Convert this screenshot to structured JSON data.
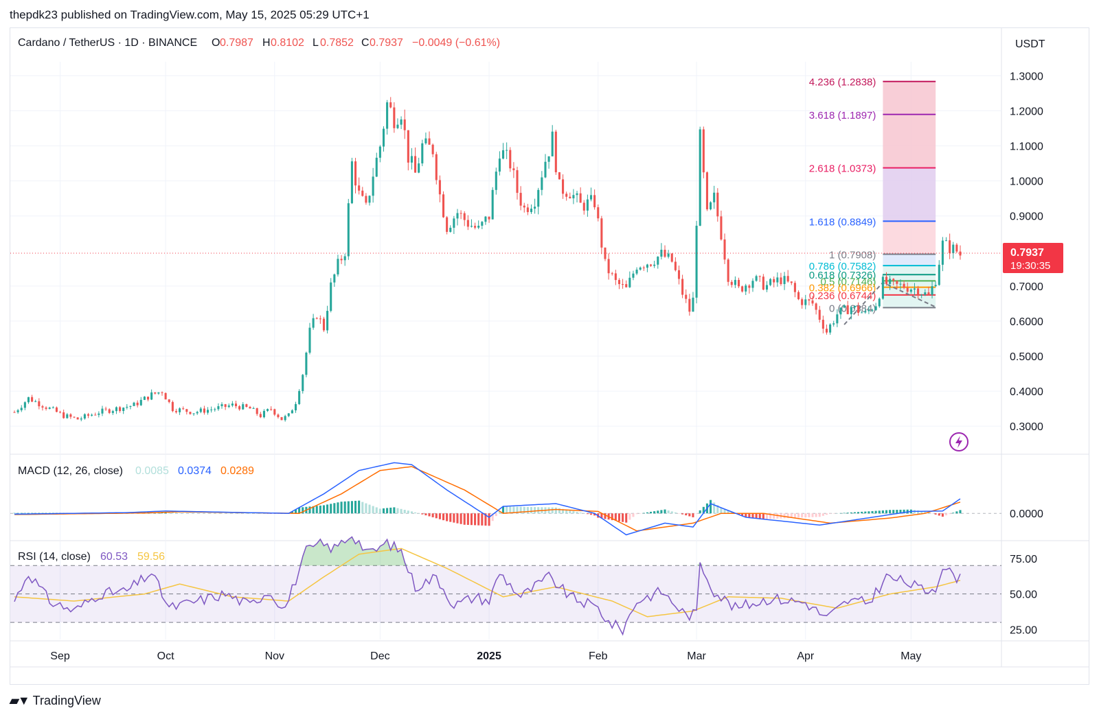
{
  "header": {
    "publisher": "thepdk23 published on TradingView.com, May 15, 2025 05:29 UTC+1"
  },
  "footer": {
    "brand": "TradingView"
  },
  "colors": {
    "up": "#26a69a",
    "down": "#ef5350",
    "macd": "#2962ff",
    "signal": "#ff6d00",
    "rsi": "#7e57c2",
    "rsi_ma": "#f5c542",
    "fib_zone_top": "#f7c6d0",
    "fib_zone_purple": "#e1cdef"
  },
  "chart_data": [
    {
      "type": "candlestick",
      "title": "Cardano / TetherUS · 1D · BINANCE",
      "ohlc_legend": {
        "o_label": "O",
        "o": "0.7987",
        "h_label": "H",
        "h": "0.8102",
        "l_label": "L",
        "l": "0.7852",
        "c_label": "C",
        "c": "0.7937",
        "change": "−0.0049 (−0.61%)"
      },
      "currency": "USDT",
      "ylim": [
        0.22,
        1.34
      ],
      "y_ticks": [
        "1.3000",
        "1.2000",
        "1.1000",
        "1.0000",
        "0.9000",
        "0.7000",
        "0.6000",
        "0.5000",
        "0.4000",
        "0.3000"
      ],
      "y_tick_values": [
        1.3,
        1.2,
        1.1,
        1.0,
        0.9,
        0.7,
        0.6,
        0.5,
        0.4,
        0.3
      ],
      "x_ticks": [
        "Sep",
        "Oct",
        "Nov",
        "Dec",
        "2025",
        "Feb",
        "Mar",
        "Apr",
        "May"
      ],
      "x_tick_dates": [
        "2024-09-01",
        "2024-10-01",
        "2024-11-01",
        "2024-12-01",
        "2025-01-01",
        "2025-02-01",
        "2025-03-01",
        "2025-04-01",
        "2025-05-01"
      ],
      "date_range": [
        "2024-08-19",
        "2025-05-15"
      ],
      "price_waypoints": [
        [
          "2024-08-19",
          0.34
        ],
        [
          "2024-08-23",
          0.38
        ],
        [
          "2024-08-27",
          0.36
        ],
        [
          "2024-09-02",
          0.33
        ],
        [
          "2024-09-06",
          0.32
        ],
        [
          "2024-09-12",
          0.34
        ],
        [
          "2024-09-17",
          0.35
        ],
        [
          "2024-09-22",
          0.36
        ],
        [
          "2024-09-27",
          0.39
        ],
        [
          "2024-09-30",
          0.4
        ],
        [
          "2024-10-03",
          0.35
        ],
        [
          "2024-10-09",
          0.34
        ],
        [
          "2024-10-15",
          0.35
        ],
        [
          "2024-10-20",
          0.36
        ],
        [
          "2024-10-25",
          0.35
        ],
        [
          "2024-10-28",
          0.33
        ],
        [
          "2024-10-31",
          0.35
        ],
        [
          "2024-11-03",
          0.32
        ],
        [
          "2024-11-05",
          0.33
        ],
        [
          "2024-11-07",
          0.37
        ],
        [
          "2024-11-09",
          0.45
        ],
        [
          "2024-11-11",
          0.57
        ],
        [
          "2024-11-13",
          0.62
        ],
        [
          "2024-11-15",
          0.58
        ],
        [
          "2024-11-17",
          0.7
        ],
        [
          "2024-11-19",
          0.76
        ],
        [
          "2024-11-21",
          0.8
        ],
        [
          "2024-11-23",
          1.05
        ],
        [
          "2024-11-25",
          0.96
        ],
        [
          "2024-11-27",
          0.92
        ],
        [
          "2024-11-29",
          1.02
        ],
        [
          "2024-12-01",
          1.1
        ],
        [
          "2024-12-03",
          1.22
        ],
        [
          "2024-12-05",
          1.18
        ],
        [
          "2024-12-07",
          1.2
        ],
        [
          "2024-12-09",
          1.07
        ],
        [
          "2024-12-11",
          1.02
        ],
        [
          "2024-12-13",
          1.1
        ],
        [
          "2024-12-16",
          1.09
        ],
        [
          "2024-12-18",
          0.96
        ],
        [
          "2024-12-20",
          0.87
        ],
        [
          "2024-12-23",
          0.91
        ],
        [
          "2024-12-26",
          0.88
        ],
        [
          "2024-12-29",
          0.86
        ],
        [
          "2025-01-01",
          0.9
        ],
        [
          "2025-01-04",
          1.09
        ],
        [
          "2025-01-07",
          1.05
        ],
        [
          "2025-01-09",
          0.97
        ],
        [
          "2025-01-11",
          0.92
        ],
        [
          "2025-01-14",
          0.95
        ],
        [
          "2025-01-17",
          1.06
        ],
        [
          "2025-01-19",
          1.12
        ],
        [
          "2025-01-21",
          0.98
        ],
        [
          "2025-01-24",
          0.97
        ],
        [
          "2025-01-27",
          0.93
        ],
        [
          "2025-01-31",
          0.94
        ],
        [
          "2025-02-02",
          0.82
        ],
        [
          "2025-02-03",
          0.76
        ],
        [
          "2025-02-06",
          0.71
        ],
        [
          "2025-02-09",
          0.69
        ],
        [
          "2025-02-12",
          0.76
        ],
        [
          "2025-02-16",
          0.77
        ],
        [
          "2025-02-19",
          0.79
        ],
        [
          "2025-02-22",
          0.77
        ],
        [
          "2025-02-25",
          0.68
        ],
        [
          "2025-02-27",
          0.63
        ],
        [
          "2025-02-28",
          0.66
        ],
        [
          "2025-03-02",
          1.12
        ],
        [
          "2025-03-04",
          0.9
        ],
        [
          "2025-03-06",
          0.95
        ],
        [
          "2025-03-08",
          0.85
        ],
        [
          "2025-03-10",
          0.73
        ],
        [
          "2025-03-13",
          0.69
        ],
        [
          "2025-03-17",
          0.72
        ],
        [
          "2025-03-21",
          0.7
        ],
        [
          "2025-03-25",
          0.72
        ],
        [
          "2025-03-28",
          0.7
        ],
        [
          "2025-03-30",
          0.66
        ],
        [
          "2025-04-03",
          0.65
        ],
        [
          "2025-04-07",
          0.57
        ],
        [
          "2025-04-10",
          0.62
        ],
        [
          "2025-04-14",
          0.64
        ],
        [
          "2025-04-18",
          0.62
        ],
        [
          "2025-04-21",
          0.65
        ],
        [
          "2025-04-23",
          0.71
        ],
        [
          "2025-04-26",
          0.7
        ],
        [
          "2025-04-29",
          0.7
        ],
        [
          "2025-05-03",
          0.69
        ],
        [
          "2025-05-06",
          0.67
        ],
        [
          "2025-05-08",
          0.72
        ],
        [
          "2025-05-10",
          0.82
        ],
        [
          "2025-05-12",
          0.81
        ],
        [
          "2025-05-14",
          0.8
        ],
        [
          "2025-05-15",
          0.79
        ]
      ],
      "current_price": {
        "value": 0.7937,
        "label": "0.7937",
        "countdown": "19:30:35",
        "color": "#f23645"
      },
      "fib_extension": {
        "date_range": [
          "2025-04-23",
          "2025-05-08"
        ],
        "levels": [
          {
            "ratio": 4.236,
            "price": 1.2838,
            "label": "4.236 (1.2838)",
            "color": "#c2185b"
          },
          {
            "ratio": 3.618,
            "price": 1.1897,
            "label": "3.618 (1.1897)",
            "color": "#9c27b0"
          },
          {
            "ratio": 2.618,
            "price": 1.0373,
            "label": "2.618 (1.0373)",
            "color": "#e91e63"
          },
          {
            "ratio": 1.618,
            "price": 0.8849,
            "label": "1.618 (0.8849)",
            "color": "#2962ff"
          },
          {
            "ratio": 1,
            "price": 0.7908,
            "label": "1 (0.7908)",
            "color": "#787b86"
          },
          {
            "ratio": 0.786,
            "price": 0.7582,
            "label": "0.786 (0.7582)",
            "color": "#00bcd4"
          },
          {
            "ratio": 0.618,
            "price": 0.7326,
            "label": "0.618 (0.7326)",
            "color": "#089981"
          },
          {
            "ratio": 0.5,
            "price": 0.7146,
            "label": "0.5 (0.7146)",
            "color": "#4caf50"
          },
          {
            "ratio": 0.382,
            "price": 0.6966,
            "label": "0.382 (0.6966)",
            "color": "#ff9800"
          },
          {
            "ratio": 0.236,
            "price": 0.6744,
            "label": "0.236 (0.6744)",
            "color": "#f23645"
          },
          {
            "ratio": 0,
            "price": 0.6384,
            "label": "0 (0.6384)",
            "color": "#787b86"
          }
        ]
      }
    },
    {
      "type": "line",
      "title": "MACD (12, 26, close)",
      "values_legend": [
        "0.0085",
        "0.0374",
        "0.0289"
      ],
      "y_ticks": [
        "0.0000"
      ],
      "ylim": [
        -0.07,
        0.15
      ],
      "series": [
        {
          "key": "macd",
          "waypoints": [
            [
              "2024-08-19",
              -0.002
            ],
            [
              "2024-09-20",
              0.002
            ],
            [
              "2024-10-01",
              0.006
            ],
            [
              "2024-11-05",
              0.0
            ],
            [
              "2024-11-15",
              0.05
            ],
            [
              "2024-11-25",
              0.11
            ],
            [
              "2024-12-05",
              0.13
            ],
            [
              "2024-12-10",
              0.125
            ],
            [
              "2024-12-20",
              0.06
            ],
            [
              "2025-01-01",
              -0.01
            ],
            [
              "2025-01-05",
              0.018
            ],
            [
              "2025-01-20",
              0.025
            ],
            [
              "2025-01-31",
              0.0
            ],
            [
              "2025-02-09",
              -0.055
            ],
            [
              "2025-02-20",
              -0.025
            ],
            [
              "2025-02-28",
              -0.035
            ],
            [
              "2025-03-05",
              0.025
            ],
            [
              "2025-03-15",
              -0.01
            ],
            [
              "2025-04-05",
              -0.03
            ],
            [
              "2025-04-20",
              -0.01
            ],
            [
              "2025-05-01",
              0.005
            ],
            [
              "2025-05-10",
              0.006
            ],
            [
              "2025-05-15",
              0.0374
            ]
          ]
        },
        {
          "key": "signal",
          "waypoints": [
            [
              "2024-08-19",
              -0.003
            ],
            [
              "2024-09-25",
              0.001
            ],
            [
              "2024-10-05",
              0.004
            ],
            [
              "2024-11-08",
              0.0
            ],
            [
              "2024-11-20",
              0.05
            ],
            [
              "2024-12-01",
              0.11
            ],
            [
              "2024-12-10",
              0.12
            ],
            [
              "2024-12-25",
              0.06
            ],
            [
              "2025-01-05",
              0.0
            ],
            [
              "2025-01-20",
              0.01
            ],
            [
              "2025-02-01",
              0.005
            ],
            [
              "2025-02-12",
              -0.045
            ],
            [
              "2025-02-28",
              -0.025
            ],
            [
              "2025-03-08",
              0.0
            ],
            [
              "2025-03-20",
              0.0
            ],
            [
              "2025-04-08",
              -0.025
            ],
            [
              "2025-04-25",
              -0.012
            ],
            [
              "2025-05-05",
              0.0
            ],
            [
              "2025-05-15",
              0.0289
            ]
          ]
        }
      ],
      "histogram_value": "0.0085"
    },
    {
      "type": "line",
      "title": "RSI (14, close)",
      "values_legend": [
        "60.53",
        "59.56"
      ],
      "y_ticks": [
        "75.00",
        "50.00",
        "25.00"
      ],
      "y_tick_values": [
        75,
        50,
        25
      ],
      "ylim": [
        18,
        87
      ],
      "bands": [
        70,
        50,
        30
      ],
      "series": [
        {
          "key": "rsi",
          "waypoints": [
            [
              "2024-08-19",
              45
            ],
            [
              "2024-08-23",
              65
            ],
            [
              "2024-08-29",
              45
            ],
            [
              "2024-09-05",
              38
            ],
            [
              "2024-09-12",
              50
            ],
            [
              "2024-09-20",
              52
            ],
            [
              "2024-09-27",
              65
            ],
            [
              "2024-10-02",
              40
            ],
            [
              "2024-10-10",
              45
            ],
            [
              "2024-10-18",
              50
            ],
            [
              "2024-10-25",
              42
            ],
            [
              "2024-10-30",
              52
            ],
            [
              "2024-11-04",
              40
            ],
            [
              "2024-11-10",
              80
            ],
            [
              "2024-11-14",
              85
            ],
            [
              "2024-11-18",
              82
            ],
            [
              "2024-11-23",
              92
            ],
            [
              "2024-11-28",
              78
            ],
            [
              "2024-12-03",
              86
            ],
            [
              "2024-12-07",
              80
            ],
            [
              "2024-12-11",
              55
            ],
            [
              "2024-12-17",
              62
            ],
            [
              "2024-12-22",
              42
            ],
            [
              "2024-12-28",
              48
            ],
            [
              "2025-01-01",
              45
            ],
            [
              "2025-01-04",
              65
            ],
            [
              "2025-01-10",
              48
            ],
            [
              "2025-01-18",
              62
            ],
            [
              "2025-01-24",
              48
            ],
            [
              "2025-02-01",
              40
            ],
            [
              "2025-02-04",
              30
            ],
            [
              "2025-02-08",
              25
            ],
            [
              "2025-02-12",
              45
            ],
            [
              "2025-02-19",
              52
            ],
            [
              "2025-02-26",
              35
            ],
            [
              "2025-03-01",
              36
            ],
            [
              "2025-03-02",
              72
            ],
            [
              "2025-03-06",
              52
            ],
            [
              "2025-03-12",
              40
            ],
            [
              "2025-03-22",
              47
            ],
            [
              "2025-04-01",
              44
            ],
            [
              "2025-04-07",
              33
            ],
            [
              "2025-04-13",
              45
            ],
            [
              "2025-04-19",
              44
            ],
            [
              "2025-04-24",
              62
            ],
            [
              "2025-04-30",
              58
            ],
            [
              "2025-05-05",
              52
            ],
            [
              "2025-05-08",
              55
            ],
            [
              "2025-05-10",
              70
            ],
            [
              "2025-05-12",
              65
            ],
            [
              "2025-05-15",
              60.53
            ]
          ]
        },
        {
          "key": "rsi_ma",
          "waypoints": [
            [
              "2024-08-19",
              48
            ],
            [
              "2024-09-05",
              45
            ],
            [
              "2024-09-25",
              50
            ],
            [
              "2024-10-05",
              57
            ],
            [
              "2024-10-20",
              48
            ],
            [
              "2024-11-05",
              45
            ],
            [
              "2024-11-15",
              62
            ],
            [
              "2024-11-25",
              78
            ],
            [
              "2024-12-07",
              82
            ],
            [
              "2024-12-20",
              68
            ],
            [
              "2025-01-05",
              48
            ],
            [
              "2025-01-20",
              55
            ],
            [
              "2025-02-05",
              45
            ],
            [
              "2025-02-15",
              34
            ],
            [
              "2025-02-28",
              38
            ],
            [
              "2025-03-10",
              48
            ],
            [
              "2025-03-25",
              47
            ],
            [
              "2025-04-10",
              40
            ],
            [
              "2025-04-25",
              50
            ],
            [
              "2025-05-08",
              55
            ],
            [
              "2025-05-15",
              59.56
            ]
          ]
        }
      ]
    }
  ]
}
